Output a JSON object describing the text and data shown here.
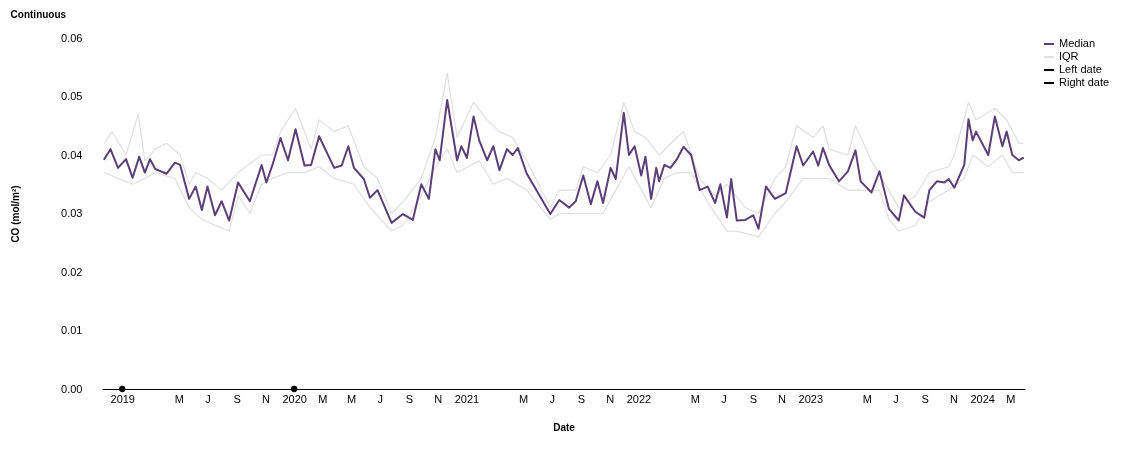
{
  "chart_data": {
    "type": "line",
    "title": "Continuous",
    "xlabel": "Date",
    "ylabel": "CO (mol/m²)",
    "xlim": [
      "2018-11-19",
      "2024-04-01"
    ],
    "xticks": [
      {
        "value": "2019-01-01",
        "label": "2019"
      },
      {
        "value": "2019-05-01",
        "label": "M"
      },
      {
        "value": "2019-07-01",
        "label": "J"
      },
      {
        "value": "2019-09-01",
        "label": "S"
      },
      {
        "value": "2019-11-01",
        "label": "N"
      },
      {
        "value": "2020-01-01",
        "label": "2020"
      },
      {
        "value": "2020-03-01",
        "label": "M"
      },
      {
        "value": "2020-05-01",
        "label": "M"
      },
      {
        "value": "2020-07-01",
        "label": "J"
      },
      {
        "value": "2020-09-01",
        "label": "S"
      },
      {
        "value": "2020-11-01",
        "label": "N"
      },
      {
        "value": "2021-01-01",
        "label": "2021"
      },
      {
        "value": "2021-05-01",
        "label": "M"
      },
      {
        "value": "2021-07-01",
        "label": "J"
      },
      {
        "value": "2021-09-01",
        "label": "S"
      },
      {
        "value": "2021-11-01",
        "label": "N"
      },
      {
        "value": "2022-01-01",
        "label": "2022"
      },
      {
        "value": "2022-05-01",
        "label": "M"
      },
      {
        "value": "2022-07-01",
        "label": "J"
      },
      {
        "value": "2022-09-01",
        "label": "S"
      },
      {
        "value": "2022-11-01",
        "label": "N"
      },
      {
        "value": "2023-01-01",
        "label": "2023"
      },
      {
        "value": "2023-05-01",
        "label": "M"
      },
      {
        "value": "2023-07-01",
        "label": "J"
      },
      {
        "value": "2023-09-01",
        "label": "S"
      },
      {
        "value": "2023-11-01",
        "label": "N"
      },
      {
        "value": "2024-01-01",
        "label": "2024"
      },
      {
        "value": "2024-03-01",
        "label": "M"
      }
    ],
    "ylim": [
      0,
      0.06
    ],
    "yticks": [
      {
        "value": 0,
        "label": "0.00"
      },
      {
        "value": 0.01,
        "label": "0.01"
      },
      {
        "value": 0.02,
        "label": "0.02"
      },
      {
        "value": 0.03,
        "label": "0.03"
      },
      {
        "value": 0.04,
        "label": "0.04"
      },
      {
        "value": 0.05,
        "label": "0.05"
      },
      {
        "value": 0.06,
        "label": "0.06"
      }
    ],
    "grid": false,
    "legend": "right",
    "line_style": "solid",
    "series": [
      {
        "name": "Median",
        "color": "#5b3f77",
        "x": [
          "2018-11-24",
          "2018-12-07",
          "2018-12-23",
          "2019-01-09",
          "2019-01-23",
          "2019-02-06",
          "2019-02-18",
          "2019-03-01",
          "2019-03-12",
          "2019-04-05",
          "2019-04-23",
          "2019-05-04",
          "2019-05-23",
          "2019-06-06",
          "2019-06-19",
          "2019-07-01",
          "2019-07-17",
          "2019-07-31",
          "2019-08-16",
          "2019-09-04",
          "2019-09-29",
          "2019-10-24",
          "2019-11-03",
          "2019-11-16",
          "2019-12-03",
          "2019-12-19",
          "2020-01-04",
          "2020-01-23",
          "2020-02-06",
          "2020-02-23",
          "2020-03-26",
          "2020-04-11",
          "2020-04-25",
          "2020-05-07",
          "2020-05-28",
          "2020-06-10",
          "2020-06-26",
          "2020-07-26",
          "2020-08-19",
          "2020-09-09",
          "2020-09-27",
          "2020-10-13",
          "2020-10-27",
          "2020-11-05",
          "2020-11-21",
          "2020-12-12",
          "2020-12-21",
          "2021-01-02",
          "2021-01-16",
          "2021-01-28",
          "2021-02-14",
          "2021-02-27",
          "2021-03-12",
          "2021-03-28",
          "2021-04-09",
          "2021-04-20",
          "2021-05-09",
          "2021-05-25",
          "2021-06-28",
          "2021-07-17",
          "2021-08-07",
          "2021-08-21",
          "2021-09-06",
          "2021-09-22",
          "2021-10-06",
          "2021-10-18",
          "2021-11-03",
          "2021-11-14",
          "2021-12-01",
          "2021-12-12",
          "2021-12-24",
          "2022-01-07",
          "2022-01-16",
          "2022-01-28",
          "2022-02-08",
          "2022-02-14",
          "2022-02-25",
          "2022-03-10",
          "2022-03-24",
          "2022-04-07",
          "2022-04-23",
          "2022-05-11",
          "2022-05-28",
          "2022-06-13",
          "2022-06-24",
          "2022-07-08",
          "2022-07-17",
          "2022-07-29",
          "2022-08-16",
          "2022-09-02",
          "2022-09-13",
          "2022-09-29",
          "2022-10-18",
          "2022-11-10",
          "2022-12-03",
          "2022-12-17",
          "2023-01-07",
          "2023-01-18",
          "2023-01-28",
          "2023-02-10",
          "2023-03-03",
          "2023-03-22",
          "2023-04-07",
          "2023-04-18",
          "2023-05-11",
          "2023-05-28",
          "2023-06-17",
          "2023-07-08",
          "2023-07-19",
          "2023-08-12",
          "2023-08-31",
          "2023-09-11",
          "2023-09-27",
          "2023-10-13",
          "2023-10-22",
          "2023-11-03",
          "2023-11-24",
          "2023-12-03",
          "2023-12-12",
          "2023-12-19",
          "2024-01-14",
          "2024-01-28",
          "2024-02-13",
          "2024-02-22",
          "2024-03-05",
          "2024-03-19",
          "2024-03-28"
        ],
        "values": [
          0.0393,
          0.041,
          0.0378,
          0.0393,
          0.0361,
          0.0397,
          0.037,
          0.0393,
          0.0376,
          0.0368,
          0.0387,
          0.0383,
          0.0325,
          0.0346,
          0.0306,
          0.0346,
          0.0297,
          0.0321,
          0.0288,
          0.0353,
          0.0321,
          0.0383,
          0.0353,
          0.0383,
          0.0429,
          0.0391,
          0.0444,
          0.0382,
          0.0383,
          0.0432,
          0.0378,
          0.0382,
          0.0415,
          0.0378,
          0.0359,
          0.0327,
          0.034,
          0.0284,
          0.0299,
          0.0289,
          0.035,
          0.0325,
          0.041,
          0.0391,
          0.0494,
          0.0391,
          0.0415,
          0.0395,
          0.0466,
          0.0425,
          0.0391,
          0.0415,
          0.0374,
          0.041,
          0.04,
          0.0412,
          0.0368,
          0.0346,
          0.0299,
          0.0323,
          0.031,
          0.0321,
          0.0365,
          0.0316,
          0.0355,
          0.0318,
          0.0378,
          0.0359,
          0.0472,
          0.04,
          0.0415,
          0.0365,
          0.0397,
          0.0325,
          0.0378,
          0.0355,
          0.0383,
          0.0378,
          0.0393,
          0.0414,
          0.04,
          0.034,
          0.0346,
          0.0318,
          0.035,
          0.0293,
          0.0359,
          0.0288,
          0.0289,
          0.0297,
          0.0274,
          0.0346,
          0.0325,
          0.0335,
          0.0415,
          0.0382,
          0.0406,
          0.0382,
          0.0412,
          0.0383,
          0.0355,
          0.0372,
          0.0408,
          0.0355,
          0.0336,
          0.0372,
          0.0308,
          0.0288,
          0.0331,
          0.0303,
          0.0293,
          0.034,
          0.0355,
          0.0353,
          0.0359,
          0.0344,
          0.0383,
          0.0461,
          0.0425,
          0.044,
          0.04,
          0.0466,
          0.0415,
          0.044,
          0.04,
          0.0391,
          0.0395
        ]
      },
      {
        "name": "IQR",
        "color": "#e0e0e0",
        "x": [
          "2018-11-24",
          "2018-12-10",
          "2019-01-09",
          "2019-02-04",
          "2019-02-18",
          "2019-03-12",
          "2019-04-05",
          "2019-05-04",
          "2019-05-23",
          "2019-06-06",
          "2019-07-01",
          "2019-07-31",
          "2019-09-04",
          "2019-10-24",
          "2019-11-16",
          "2019-12-03",
          "2020-01-04",
          "2020-02-06",
          "2020-02-23",
          "2020-03-26",
          "2020-04-25",
          "2020-05-28",
          "2020-06-26",
          "2020-07-26",
          "2020-08-19",
          "2020-09-27",
          "2020-10-27",
          "2020-11-21",
          "2020-12-12",
          "2021-01-16",
          "2021-02-14",
          "2021-03-12",
          "2021-04-09",
          "2021-05-09",
          "2021-06-28",
          "2021-07-17",
          "2021-08-21",
          "2021-09-06",
          "2021-10-06",
          "2021-11-03",
          "2021-12-01",
          "2021-12-24",
          "2022-01-16",
          "2022-02-14",
          "2022-03-24",
          "2022-04-07",
          "2022-05-11",
          "2022-06-13",
          "2022-07-08",
          "2022-08-16",
          "2022-09-13",
          "2022-10-18",
          "2022-11-10",
          "2022-12-03",
          "2023-01-07",
          "2023-01-28",
          "2023-02-10",
          "2023-03-22",
          "2023-04-07",
          "2023-05-11",
          "2023-06-17",
          "2023-07-08",
          "2023-08-12",
          "2023-09-11",
          "2023-10-22",
          "2023-11-03",
          "2023-12-03",
          "2023-12-19",
          "2024-01-28",
          "2024-02-22",
          "2024-03-19",
          "2024-03-28"
        ],
        "values": [
          0.042,
          0.044,
          0.04,
          0.047,
          0.039,
          0.041,
          0.042,
          0.04,
          0.035,
          0.037,
          0.036,
          0.034,
          0.037,
          0.04,
          0.04,
          0.044,
          0.048,
          0.041,
          0.046,
          0.044,
          0.045,
          0.038,
          0.036,
          0.03,
          0.032,
          0.036,
          0.043,
          0.054,
          0.043,
          0.049,
          0.046,
          0.044,
          0.043,
          0.039,
          0.031,
          0.034,
          0.034,
          0.038,
          0.037,
          0.04,
          0.049,
          0.044,
          0.043,
          0.04,
          0.043,
          0.044,
          0.036,
          0.033,
          0.035,
          0.031,
          0.03,
          0.036,
          0.038,
          0.045,
          0.043,
          0.045,
          0.041,
          0.04,
          0.045,
          0.039,
          0.034,
          0.031,
          0.033,
          0.037,
          0.038,
          0.04,
          0.049,
          0.046,
          0.048,
          0.046,
          0.042,
          0.042
        ]
      },
      {
        "color": "#e0e0e0",
        "x": [
          "2018-11-24",
          "2018-12-23",
          "2019-01-23",
          "2019-02-18",
          "2019-03-12",
          "2019-04-23",
          "2019-05-23",
          "2019-06-19",
          "2019-07-17",
          "2019-08-16",
          "2019-09-04",
          "2019-09-29",
          "2019-10-24",
          "2019-11-16",
          "2019-12-19",
          "2020-01-23",
          "2020-02-23",
          "2020-03-26",
          "2020-05-07",
          "2020-06-10",
          "2020-07-26",
          "2020-08-19",
          "2020-09-27",
          "2020-10-27",
          "2020-11-21",
          "2020-12-12",
          "2021-01-28",
          "2021-02-27",
          "2021-03-28",
          "2021-05-09",
          "2021-06-28",
          "2021-07-17",
          "2021-08-21",
          "2021-09-22",
          "2021-10-18",
          "2021-11-14",
          "2021-12-12",
          "2022-01-28",
          "2022-02-25",
          "2022-03-24",
          "2022-04-23",
          "2022-05-28",
          "2022-07-08",
          "2022-07-29",
          "2022-09-13",
          "2022-10-18",
          "2022-11-10",
          "2022-12-17",
          "2023-01-18",
          "2023-02-10",
          "2023-03-22",
          "2023-04-18",
          "2023-05-28",
          "2023-06-17",
          "2023-07-08",
          "2023-08-12",
          "2023-09-11",
          "2023-10-22",
          "2023-11-24",
          "2023-12-12",
          "2024-01-14",
          "2024-02-13",
          "2024-03-05",
          "2024-03-28"
        ],
        "values": [
          0.037,
          0.036,
          0.035,
          0.036,
          0.037,
          0.036,
          0.031,
          0.029,
          0.028,
          0.027,
          0.033,
          0.03,
          0.035,
          0.036,
          0.037,
          0.037,
          0.038,
          0.036,
          0.035,
          0.031,
          0.027,
          0.028,
          0.033,
          0.038,
          0.041,
          0.037,
          0.039,
          0.035,
          0.036,
          0.034,
          0.029,
          0.03,
          0.03,
          0.03,
          0.03,
          0.034,
          0.038,
          0.031,
          0.036,
          0.037,
          0.037,
          0.032,
          0.027,
          0.027,
          0.026,
          0.03,
          0.032,
          0.036,
          0.036,
          0.036,
          0.034,
          0.034,
          0.034,
          0.029,
          0.027,
          0.028,
          0.032,
          0.034,
          0.036,
          0.04,
          0.038,
          0.04,
          0.037,
          0.037
        ]
      },
      {
        "name": "Left date",
        "type": "scatter",
        "marker": "circle",
        "color": "#000000",
        "x": [
          "2019-01-01"
        ],
        "values": [
          0
        ]
      },
      {
        "name": "Right date",
        "type": "scatter",
        "marker": "circle",
        "color": "#000000",
        "x": [
          "2020-01-01"
        ],
        "values": [
          0
        ]
      }
    ]
  }
}
